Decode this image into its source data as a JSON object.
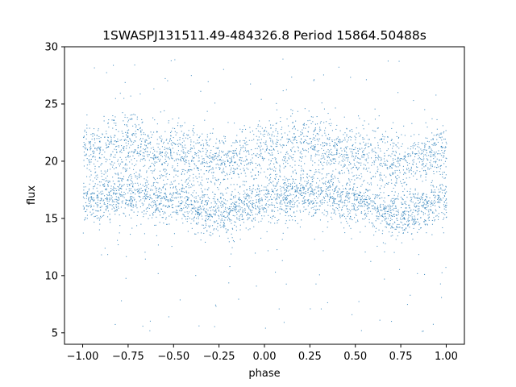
{
  "chart_data": {
    "type": "scatter",
    "title": "1SWASPJ131511.49-484326.8 Period 15864.50488s",
    "xlabel": "phase",
    "ylabel": "flux",
    "xlim": [
      -1.1,
      1.1
    ],
    "ylim": [
      4,
      30
    ],
    "xticks": [
      "−1.00",
      "−0.75",
      "−0.50",
      "−0.25",
      "0.00",
      "0.25",
      "0.50",
      "0.75",
      "1.00"
    ],
    "xtick_values": [
      -1.0,
      -0.75,
      -0.5,
      -0.25,
      0.0,
      0.25,
      0.5,
      0.75,
      1.0
    ],
    "yticks": [
      "5",
      "10",
      "15",
      "20",
      "25",
      "30"
    ],
    "ytick_values": [
      5,
      10,
      15,
      20,
      25,
      30
    ],
    "grid": false,
    "legend": "none",
    "marker_color": "#1f77b4",
    "series": [
      {
        "description": "phase-folded light curve, two flux bands repeating with period 1 in phase",
        "x_range": [
          -1.0,
          1.0
        ],
        "lower_band": {
          "phase": [
            -1.0,
            -0.75,
            -0.5,
            -0.25,
            0.0,
            0.25,
            0.5,
            0.75,
            1.0
          ],
          "flux": [
            16.7,
            17.3,
            16.6,
            15.4,
            16.7,
            17.3,
            16.6,
            15.4,
            16.7
          ]
        },
        "upper_band": {
          "phase": [
            -1.0,
            -0.75,
            -0.5,
            -0.25,
            0.0,
            0.25,
            0.5,
            0.75,
            1.0
          ],
          "flux": [
            21.0,
            21.6,
            20.8,
            19.9,
            21.0,
            21.6,
            20.8,
            19.9,
            21.0
          ]
        }
      }
    ]
  }
}
